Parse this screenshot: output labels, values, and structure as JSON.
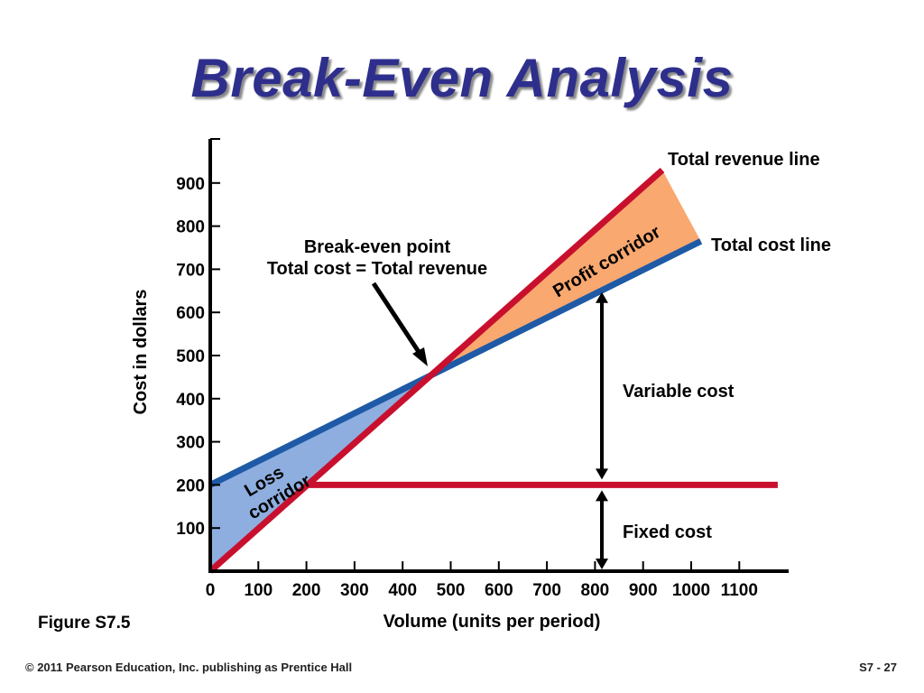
{
  "slide": {
    "title": "Break-Even Analysis",
    "figure_label": "Figure S7.5",
    "copyright": "© 2011 Pearson Education, Inc. publishing as Prentice Hall",
    "page": "S7 - 27"
  },
  "chart_data": {
    "type": "line",
    "title": "",
    "xlabel": "Volume (units per period)",
    "ylabel": "Cost in dollars",
    "xlim": [
      0,
      1200
    ],
    "ylim": [
      0,
      1000
    ],
    "x_ticks": [
      0,
      100,
      200,
      300,
      400,
      500,
      600,
      700,
      800,
      900,
      1000,
      1100
    ],
    "y_ticks": [
      100,
      200,
      300,
      400,
      500,
      600,
      700,
      800,
      900
    ],
    "x_tick_labels": [
      "0",
      "100",
      "200",
      "300",
      "400",
      "500",
      "600",
      "700",
      "800",
      "900",
      "1000",
      "1100"
    ],
    "y_tick_labels": [
      "100",
      "200",
      "300",
      "400",
      "500",
      "600",
      "700",
      "800",
      "900"
    ],
    "grid": false,
    "series": [
      {
        "name": "Total revenue line",
        "color": "#c8102e",
        "x": [
          0,
          940
        ],
        "y": [
          0,
          930
        ]
      },
      {
        "name": "Total cost line",
        "color": "#1f5aa6",
        "x": [
          0,
          1020
        ],
        "y": [
          200,
          765
        ]
      },
      {
        "name": "Fixed cost",
        "color": "#c8102e",
        "x": [
          200,
          1180
        ],
        "y": [
          200,
          200
        ]
      }
    ],
    "annotations": {
      "break_even_line1": "Break-even point",
      "break_even_line2": "Total cost = Total revenue",
      "profit_corridor": "Profit corridor",
      "loss_line1": "Loss",
      "loss_line2": "corridor",
      "variable_cost": "Variable cost",
      "fixed_cost": "Fixed cost"
    },
    "colors": {
      "profit_fill": "#f9a870",
      "loss_fill": "#8eaee0",
      "revenue": "#c8102e",
      "cost": "#1f5aa6",
      "axis": "#000000"
    }
  }
}
